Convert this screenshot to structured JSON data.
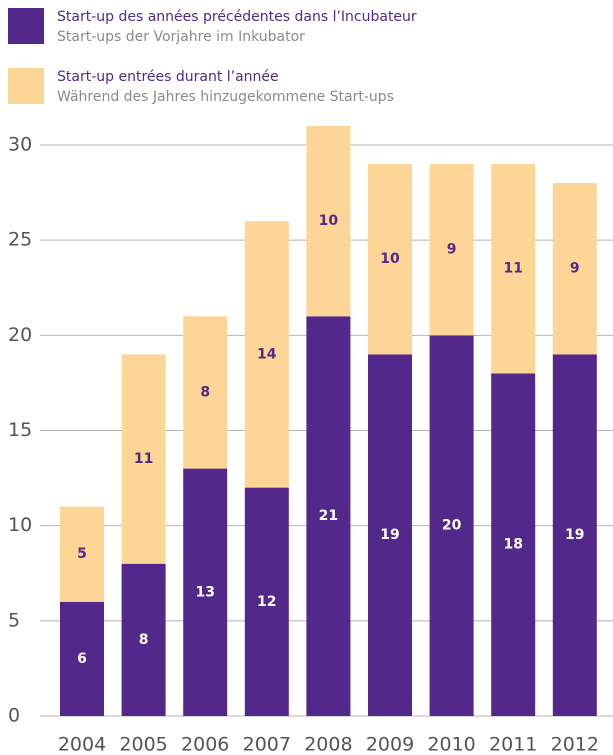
{
  "chart_data": {
    "type": "stacked_bar",
    "categories": [
      "2004",
      "2005",
      "2006",
      "2007",
      "2008",
      "2009",
      "2010",
      "2011",
      "2012"
    ],
    "series": [
      {
        "name": "Start-up des années précédentes dans l’Incubateur",
        "name_de": "Start-ups der Vorjahre im Inkubator",
        "color": "#52288a",
        "label_color": "#ffffff",
        "values": [
          6,
          8,
          13,
          12,
          21,
          19,
          20,
          18,
          19
        ]
      },
      {
        "name": "Start-up entrées durant l’année",
        "name_de": "Während des Jahres hinzugekommene Start-ups",
        "color": "#fdd597",
        "label_color": "#52288a",
        "values": [
          5,
          11,
          8,
          14,
          10,
          10,
          9,
          11,
          9
        ]
      }
    ],
    "ylim": [
      0,
      30
    ],
    "yticks": [
      0,
      5,
      10,
      15,
      20,
      25,
      30
    ],
    "grid": true
  }
}
